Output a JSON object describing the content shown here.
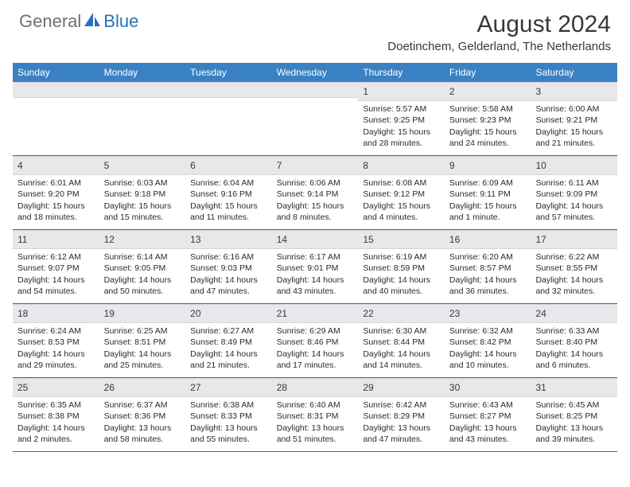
{
  "logo": {
    "general": "General",
    "blue": "Blue"
  },
  "title": "August 2024",
  "location": "Doetinchem, Gelderland, The Netherlands",
  "colors": {
    "header_bg": "#3a81c4",
    "daynum_bg": "#e6e8ea",
    "week_border": "#2672b8",
    "logo_blue": "#2672b8",
    "logo_grey": "#6b7078"
  },
  "day_headers": [
    "Sunday",
    "Monday",
    "Tuesday",
    "Wednesday",
    "Thursday",
    "Friday",
    "Saturday"
  ],
  "weeks": [
    [
      {
        "n": "",
        "sr": "",
        "ss": "",
        "dl1": "",
        "dl2": ""
      },
      {
        "n": "",
        "sr": "",
        "ss": "",
        "dl1": "",
        "dl2": ""
      },
      {
        "n": "",
        "sr": "",
        "ss": "",
        "dl1": "",
        "dl2": ""
      },
      {
        "n": "",
        "sr": "",
        "ss": "",
        "dl1": "",
        "dl2": ""
      },
      {
        "n": "1",
        "sr": "Sunrise: 5:57 AM",
        "ss": "Sunset: 9:25 PM",
        "dl1": "Daylight: 15 hours",
        "dl2": "and 28 minutes."
      },
      {
        "n": "2",
        "sr": "Sunrise: 5:58 AM",
        "ss": "Sunset: 9:23 PM",
        "dl1": "Daylight: 15 hours",
        "dl2": "and 24 minutes."
      },
      {
        "n": "3",
        "sr": "Sunrise: 6:00 AM",
        "ss": "Sunset: 9:21 PM",
        "dl1": "Daylight: 15 hours",
        "dl2": "and 21 minutes."
      }
    ],
    [
      {
        "n": "4",
        "sr": "Sunrise: 6:01 AM",
        "ss": "Sunset: 9:20 PM",
        "dl1": "Daylight: 15 hours",
        "dl2": "and 18 minutes."
      },
      {
        "n": "5",
        "sr": "Sunrise: 6:03 AM",
        "ss": "Sunset: 9:18 PM",
        "dl1": "Daylight: 15 hours",
        "dl2": "and 15 minutes."
      },
      {
        "n": "6",
        "sr": "Sunrise: 6:04 AM",
        "ss": "Sunset: 9:16 PM",
        "dl1": "Daylight: 15 hours",
        "dl2": "and 11 minutes."
      },
      {
        "n": "7",
        "sr": "Sunrise: 6:06 AM",
        "ss": "Sunset: 9:14 PM",
        "dl1": "Daylight: 15 hours",
        "dl2": "and 8 minutes."
      },
      {
        "n": "8",
        "sr": "Sunrise: 6:08 AM",
        "ss": "Sunset: 9:12 PM",
        "dl1": "Daylight: 15 hours",
        "dl2": "and 4 minutes."
      },
      {
        "n": "9",
        "sr": "Sunrise: 6:09 AM",
        "ss": "Sunset: 9:11 PM",
        "dl1": "Daylight: 15 hours",
        "dl2": "and 1 minute."
      },
      {
        "n": "10",
        "sr": "Sunrise: 6:11 AM",
        "ss": "Sunset: 9:09 PM",
        "dl1": "Daylight: 14 hours",
        "dl2": "and 57 minutes."
      }
    ],
    [
      {
        "n": "11",
        "sr": "Sunrise: 6:12 AM",
        "ss": "Sunset: 9:07 PM",
        "dl1": "Daylight: 14 hours",
        "dl2": "and 54 minutes."
      },
      {
        "n": "12",
        "sr": "Sunrise: 6:14 AM",
        "ss": "Sunset: 9:05 PM",
        "dl1": "Daylight: 14 hours",
        "dl2": "and 50 minutes."
      },
      {
        "n": "13",
        "sr": "Sunrise: 6:16 AM",
        "ss": "Sunset: 9:03 PM",
        "dl1": "Daylight: 14 hours",
        "dl2": "and 47 minutes."
      },
      {
        "n": "14",
        "sr": "Sunrise: 6:17 AM",
        "ss": "Sunset: 9:01 PM",
        "dl1": "Daylight: 14 hours",
        "dl2": "and 43 minutes."
      },
      {
        "n": "15",
        "sr": "Sunrise: 6:19 AM",
        "ss": "Sunset: 8:59 PM",
        "dl1": "Daylight: 14 hours",
        "dl2": "and 40 minutes."
      },
      {
        "n": "16",
        "sr": "Sunrise: 6:20 AM",
        "ss": "Sunset: 8:57 PM",
        "dl1": "Daylight: 14 hours",
        "dl2": "and 36 minutes."
      },
      {
        "n": "17",
        "sr": "Sunrise: 6:22 AM",
        "ss": "Sunset: 8:55 PM",
        "dl1": "Daylight: 14 hours",
        "dl2": "and 32 minutes."
      }
    ],
    [
      {
        "n": "18",
        "sr": "Sunrise: 6:24 AM",
        "ss": "Sunset: 8:53 PM",
        "dl1": "Daylight: 14 hours",
        "dl2": "and 29 minutes."
      },
      {
        "n": "19",
        "sr": "Sunrise: 6:25 AM",
        "ss": "Sunset: 8:51 PM",
        "dl1": "Daylight: 14 hours",
        "dl2": "and 25 minutes."
      },
      {
        "n": "20",
        "sr": "Sunrise: 6:27 AM",
        "ss": "Sunset: 8:49 PM",
        "dl1": "Daylight: 14 hours",
        "dl2": "and 21 minutes."
      },
      {
        "n": "21",
        "sr": "Sunrise: 6:29 AM",
        "ss": "Sunset: 8:46 PM",
        "dl1": "Daylight: 14 hours",
        "dl2": "and 17 minutes."
      },
      {
        "n": "22",
        "sr": "Sunrise: 6:30 AM",
        "ss": "Sunset: 8:44 PM",
        "dl1": "Daylight: 14 hours",
        "dl2": "and 14 minutes."
      },
      {
        "n": "23",
        "sr": "Sunrise: 6:32 AM",
        "ss": "Sunset: 8:42 PM",
        "dl1": "Daylight: 14 hours",
        "dl2": "and 10 minutes."
      },
      {
        "n": "24",
        "sr": "Sunrise: 6:33 AM",
        "ss": "Sunset: 8:40 PM",
        "dl1": "Daylight: 14 hours",
        "dl2": "and 6 minutes."
      }
    ],
    [
      {
        "n": "25",
        "sr": "Sunrise: 6:35 AM",
        "ss": "Sunset: 8:38 PM",
        "dl1": "Daylight: 14 hours",
        "dl2": "and 2 minutes."
      },
      {
        "n": "26",
        "sr": "Sunrise: 6:37 AM",
        "ss": "Sunset: 8:36 PM",
        "dl1": "Daylight: 13 hours",
        "dl2": "and 58 minutes."
      },
      {
        "n": "27",
        "sr": "Sunrise: 6:38 AM",
        "ss": "Sunset: 8:33 PM",
        "dl1": "Daylight: 13 hours",
        "dl2": "and 55 minutes."
      },
      {
        "n": "28",
        "sr": "Sunrise: 6:40 AM",
        "ss": "Sunset: 8:31 PM",
        "dl1": "Daylight: 13 hours",
        "dl2": "and 51 minutes."
      },
      {
        "n": "29",
        "sr": "Sunrise: 6:42 AM",
        "ss": "Sunset: 8:29 PM",
        "dl1": "Daylight: 13 hours",
        "dl2": "and 47 minutes."
      },
      {
        "n": "30",
        "sr": "Sunrise: 6:43 AM",
        "ss": "Sunset: 8:27 PM",
        "dl1": "Daylight: 13 hours",
        "dl2": "and 43 minutes."
      },
      {
        "n": "31",
        "sr": "Sunrise: 6:45 AM",
        "ss": "Sunset: 8:25 PM",
        "dl1": "Daylight: 13 hours",
        "dl2": "and 39 minutes."
      }
    ]
  ]
}
